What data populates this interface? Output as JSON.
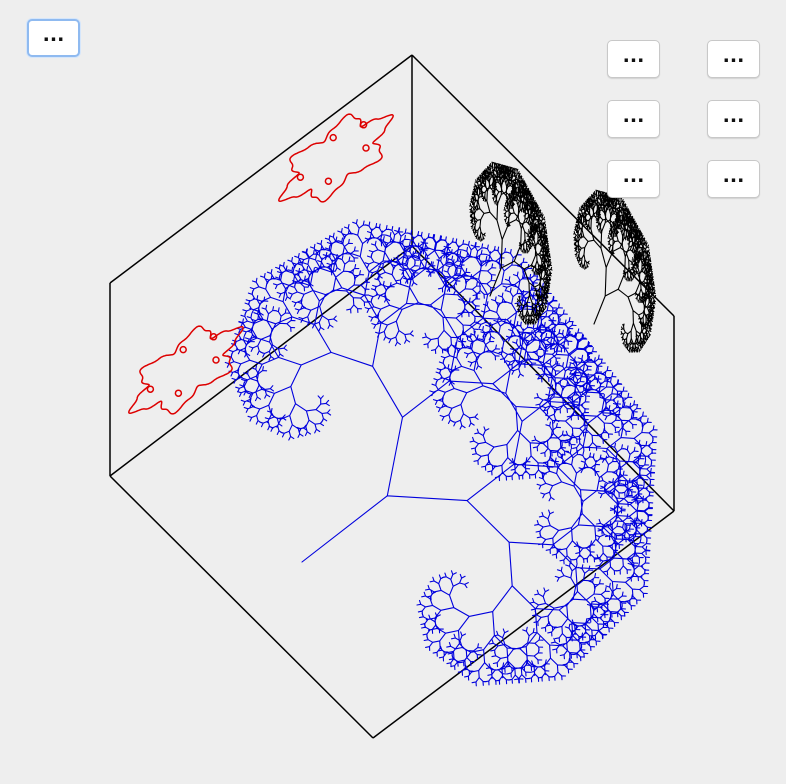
{
  "buttons": {
    "menu": "...",
    "grid": [
      {
        "label": "..."
      },
      {
        "label": "..."
      },
      {
        "label": "..."
      },
      {
        "label": "..."
      },
      {
        "label": "..."
      },
      {
        "label": "..."
      }
    ]
  },
  "colors": {
    "background": "#eeeeee",
    "cube_edges": "#000000",
    "floor_tree": "#0000dd",
    "left_wall_fractal": "#dd0000",
    "right_wall_tree": "#000000"
  },
  "icons": {
    "cube": "wireframe-cube-icon",
    "tree": "fractal-tree-icon",
    "curve": "fractal-curve-icon"
  }
}
